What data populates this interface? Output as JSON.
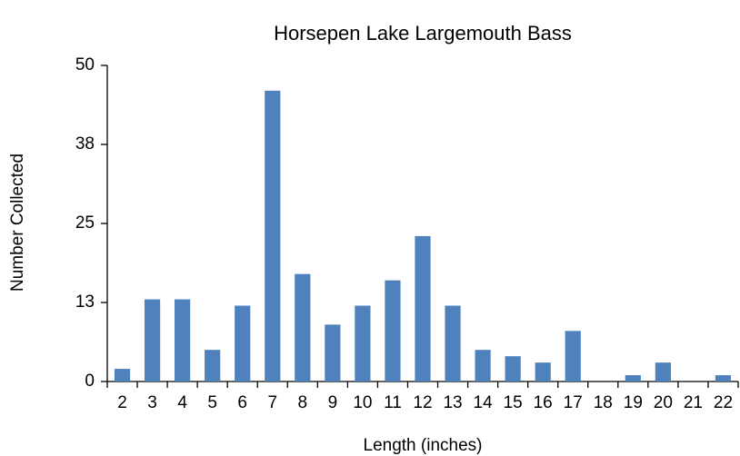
{
  "chart_data": {
    "type": "bar",
    "title": "Horsepen Lake Largemouth Bass",
    "x_label": "Length (inches)",
    "y_label": "Number Collected",
    "categories": [
      "2",
      "3",
      "4",
      "5",
      "6",
      "7",
      "8",
      "9",
      "10",
      "11",
      "12",
      "13",
      "14",
      "15",
      "16",
      "17",
      "18",
      "19",
      "20",
      "21",
      "22"
    ],
    "values": [
      2,
      13,
      13,
      5,
      12,
      46,
      17,
      9,
      12,
      16,
      23,
      12,
      5,
      4,
      3,
      8,
      0,
      1,
      3,
      0,
      1
    ],
    "color": "#4f81bd",
    "ylim": [
      0,
      50
    ],
    "yticks": [
      0,
      {
        "value": 12.5,
        "label": "13"
      },
      25,
      {
        "value": 37.5,
        "label": "38"
      },
      50
    ],
    "grid": false
  }
}
